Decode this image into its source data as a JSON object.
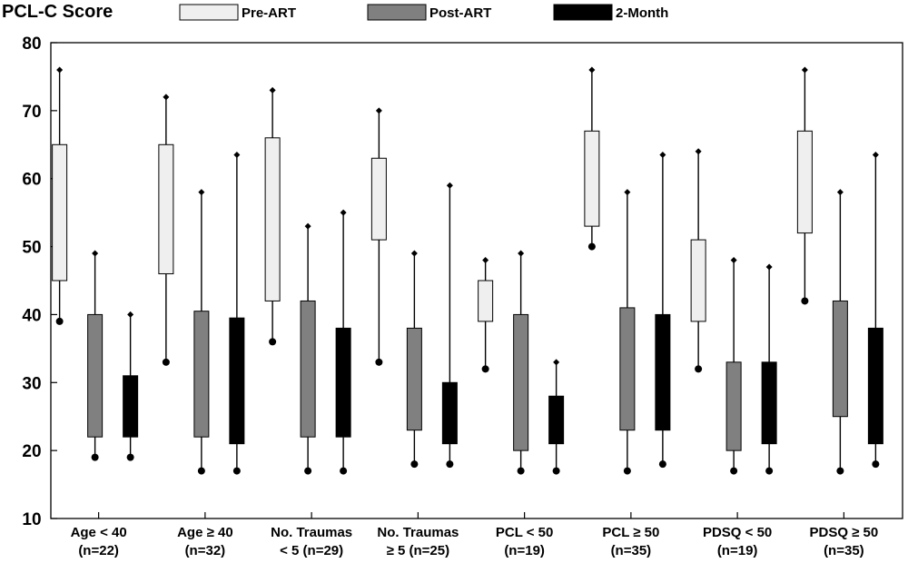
{
  "chart_data": {
    "type": "box",
    "title": "PCL-C Score",
    "ylim": [
      10,
      80
    ],
    "yticks": [
      10,
      20,
      30,
      40,
      50,
      60,
      70,
      80
    ],
    "legend": [
      {
        "name": "Pre-ART",
        "color": "#efefef"
      },
      {
        "name": "Post-ART",
        "color": "#808080"
      },
      {
        "name": "2-Month",
        "color": "#000000"
      }
    ],
    "groups": [
      {
        "line1": "Age < 40",
        "line2": "(n=22)",
        "boxes": [
          {
            "series": "Pre-ART",
            "min": 39,
            "q1": 45,
            "q3": 65,
            "max": 76
          },
          {
            "series": "Post-ART",
            "min": 19,
            "q1": 22,
            "q3": 40,
            "max": 49
          },
          {
            "series": "2-Month",
            "min": 19,
            "q1": 22,
            "q3": 31,
            "max": 40
          }
        ]
      },
      {
        "line1": "Age ≥ 40",
        "line2": "(n=32)",
        "boxes": [
          {
            "series": "Pre-ART",
            "min": 33,
            "q1": 46,
            "q3": 65,
            "max": 72
          },
          {
            "series": "Post-ART",
            "min": 17,
            "q1": 22,
            "q3": 40.5,
            "max": 58
          },
          {
            "series": "2-Month",
            "min": 17,
            "q1": 21,
            "q3": 39.5,
            "max": 63.5
          }
        ]
      },
      {
        "line1": "No. Traumas",
        "line2": "< 5 (n=29)",
        "boxes": [
          {
            "series": "Pre-ART",
            "min": 36,
            "q1": 42,
            "q3": 66,
            "max": 73
          },
          {
            "series": "Post-ART",
            "min": 17,
            "q1": 22,
            "q3": 42,
            "max": 53
          },
          {
            "series": "2-Month",
            "min": 17,
            "q1": 22,
            "q3": 38,
            "max": 55
          }
        ]
      },
      {
        "line1": "No. Traumas",
        "line2": "≥ 5 (n=25)",
        "boxes": [
          {
            "series": "Pre-ART",
            "min": 33,
            "q1": 51,
            "q3": 63,
            "max": 70
          },
          {
            "series": "Post-ART",
            "min": 18,
            "q1": 23,
            "q3": 38,
            "max": 49
          },
          {
            "series": "2-Month",
            "min": 18,
            "q1": 21,
            "q3": 30,
            "max": 59
          }
        ]
      },
      {
        "line1": "PCL < 50",
        "line2": "(n=19)",
        "boxes": [
          {
            "series": "Pre-ART",
            "min": 32,
            "q1": 39,
            "q3": 45,
            "max": 48
          },
          {
            "series": "Post-ART",
            "min": 17,
            "q1": 20,
            "q3": 40,
            "max": 49
          },
          {
            "series": "2-Month",
            "min": 17,
            "q1": 21,
            "q3": 28,
            "max": 33
          }
        ]
      },
      {
        "line1": "PCL ≥ 50",
        "line2": "(n=35)",
        "boxes": [
          {
            "series": "Pre-ART",
            "min": 50,
            "q1": 53,
            "q3": 67,
            "max": 76
          },
          {
            "series": "Post-ART",
            "min": 17,
            "q1": 23,
            "q3": 41,
            "max": 58
          },
          {
            "series": "2-Month",
            "min": 18,
            "q1": 23,
            "q3": 40,
            "max": 63.5
          }
        ]
      },
      {
        "line1": "PDSQ < 50",
        "line2": "(n=19)",
        "boxes": [
          {
            "series": "Pre-ART",
            "min": 32,
            "q1": 39,
            "q3": 51,
            "max": 64
          },
          {
            "series": "Post-ART",
            "min": 17,
            "q1": 20,
            "q3": 33,
            "max": 48
          },
          {
            "series": "2-Month",
            "min": 17,
            "q1": 21,
            "q3": 33,
            "max": 47
          }
        ]
      },
      {
        "line1": "PDSQ ≥ 50",
        "line2": "(n=35)",
        "boxes": [
          {
            "series": "Pre-ART",
            "min": 42,
            "q1": 52,
            "q3": 67,
            "max": 76
          },
          {
            "series": "Post-ART",
            "min": 17,
            "q1": 25,
            "q3": 42,
            "max": 58
          },
          {
            "series": "2-Month",
            "min": 18,
            "q1": 21,
            "q3": 38,
            "max": 63.5
          }
        ]
      }
    ]
  }
}
